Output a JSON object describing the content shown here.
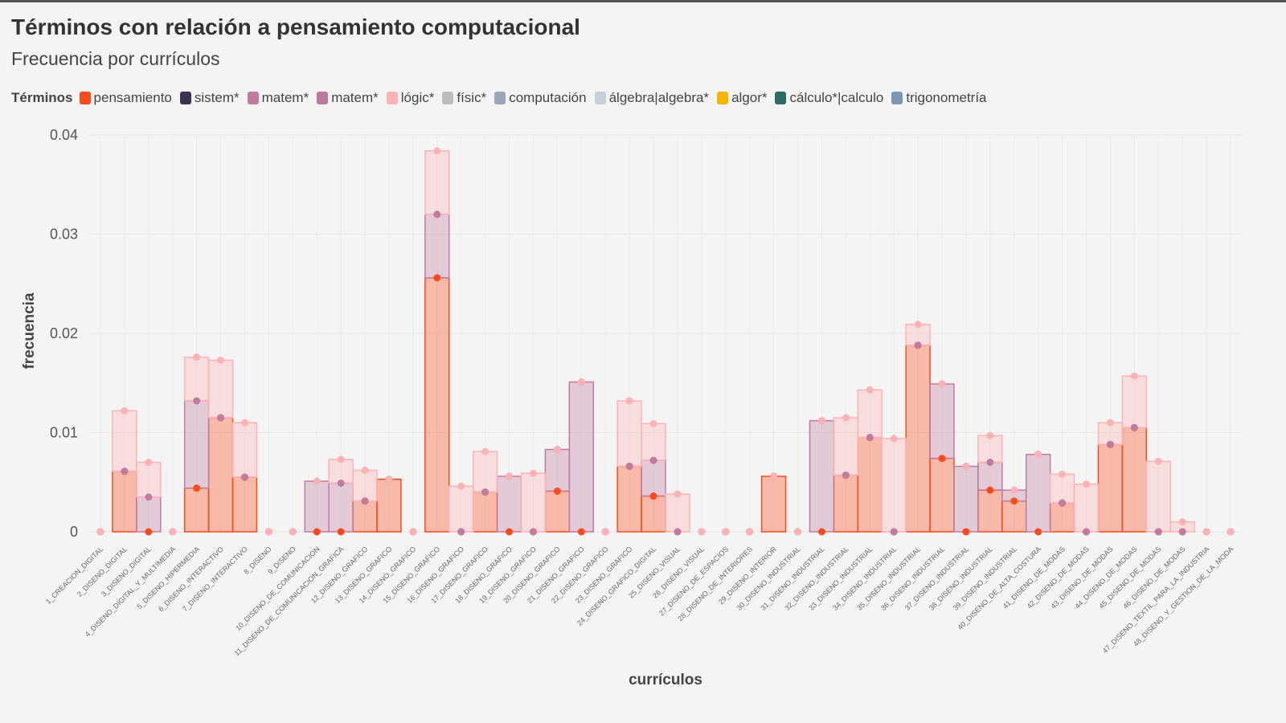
{
  "chart_data": {
    "type": "stacked_step_area",
    "title": "Términos con relación a pensamiento computacional",
    "subtitle": "Frecuencia por currículos",
    "legend_title": "Términos",
    "x_label": "currículos",
    "y_label": "frecuencia",
    "ylim": [
      0,
      0.04
    ],
    "yticks": [
      0,
      0.01,
      0.02,
      0.03,
      0.04
    ],
    "grid": true,
    "categories": [
      "1_CREACION_DIGITAL",
      "2_DISENO_DIGITAL",
      "3_DISENO_DIGITAL",
      "4_DISENO_DIGITAL_Y_MULTIMEDIA",
      "5_DISENO_HIPERMEDIA",
      "6_DISENO_INTERACTIVO",
      "7_DISENO_INTERACTIVO",
      "8_DISENO",
      "9_DISENO",
      "10_DISENO_DE_COMUNICACION",
      "11_DISENO_DE_COMUNICACION_GRAFICA",
      "12_DISENO_GRAFICO",
      "13_DISENO_GRAFICO",
      "14_DISENO_GRAFICO",
      "15_DISENO_GRAFICO",
      "16_DISENO_GRAFICO",
      "17_DISENO_GRAFICO",
      "18_DISENO_GRAFICO",
      "19_DISENO_GRAFICO",
      "20_DISENO_GRAFICO",
      "21_DISENO_GRAFICO",
      "22_DISENO_GRAFICO",
      "23_DISENO_GRAFICO",
      "24_DISENO_GRAFICO_DIGITAL",
      "25_DISENO_VISUAL",
      "26_DISENO_VISUAL",
      "27_DISENO_DE_ESPACIOS",
      "28_DISENO_DE_INTERIORES",
      "29_DISENO_INTERIOR",
      "30_DISENO_INDUSTRIAL",
      "31_DISENO_INDUSTRIAL",
      "32_DISENO_INDUSTRIAL",
      "33_DISENO_INDUSTRIAL",
      "34_DISENO_INDUSTRIAL",
      "35_DISENO_INDUSTRIAL",
      "36_DISENO_INDUSTRIAL",
      "37_DISENO_INDUSTRIAL",
      "38_DISENO_INDUSTRIAL",
      "39_DISENO_INDUSTRIAL",
      "40_DISENO_DE_ALTA_COSTURA",
      "41_DISENO_DE_MODAS",
      "42_DISENO_DE_MODAS",
      "43_DISENO_DE_MODAS",
      "44_DISENO_DE_MODAS",
      "45_DISENO_DE_MODAS",
      "46_DISENO_DE_MODAS",
      "47_DISENO_TEXTIL_PARA_LA_INDUSTRIA",
      "48_DISENO_Y_GESTION_DE_LA_MODA"
    ],
    "series": [
      {
        "name": "pensamiento",
        "color": "#fc4a1a",
        "values": [
          0,
          0.0061,
          0,
          0,
          0.0044,
          0.0115,
          0.0055,
          0,
          0,
          0,
          0,
          0.0031,
          0.0053,
          0,
          0.0256,
          0,
          0.004,
          0,
          0,
          0.0041,
          0,
          0,
          0.0066,
          0.0036,
          0,
          0,
          0,
          0,
          0.0056,
          0,
          0,
          0.0057,
          0.0095,
          0,
          0.0188,
          0.0074,
          0,
          0.0042,
          0.0031,
          0,
          0.0029,
          0,
          0.0088,
          0.0105,
          0,
          0,
          0,
          0
        ]
      },
      {
        "name": "sistem*",
        "color": "#3d3250"
      },
      {
        "name": "matem*",
        "color": "#c17b9f",
        "values": [
          0,
          0,
          0.0035,
          0,
          0.0088,
          0,
          0,
          0,
          0,
          0.0051,
          0.0049,
          0,
          0,
          0,
          0.0064,
          0,
          0,
          0.0056,
          0,
          0.0042,
          0.0151,
          0,
          0,
          0.0036,
          0,
          0,
          0,
          0,
          0,
          0,
          0.0112,
          0,
          0,
          0,
          0,
          0.0075,
          0.0066,
          0.0028,
          0.0011,
          0.0078,
          0,
          0,
          0,
          0,
          0,
          0,
          0,
          0
        ]
      },
      {
        "name": "matem*",
        "color": "#b97a9b"
      },
      {
        "name": "lógic*",
        "color": "#ffb2b4",
        "values": [
          0,
          0.0061,
          0.0035,
          0,
          0.0044,
          0.0058,
          0.0055,
          0,
          0,
          0,
          0.0024,
          0.0031,
          0,
          0,
          0.0064,
          0.0046,
          0.0041,
          0,
          0.0059,
          0,
          0,
          0,
          0.0066,
          0.0037,
          0.0038,
          0,
          0,
          0,
          0,
          0,
          0,
          0.0058,
          0.0048,
          0.0094,
          0.0021,
          0,
          0,
          0.0027,
          0,
          0,
          0.0029,
          0.0048,
          0.0022,
          0.0052,
          0.0071,
          0.001,
          0,
          0
        ]
      },
      {
        "name": "físic*",
        "color": "#bdbdbd"
      },
      {
        "name": "computación",
        "color": "#9da3b8"
      },
      {
        "name": "álgebra|algebra*",
        "color": "#c5d1d8"
      },
      {
        "name": "algor*",
        "color": "#f7b500"
      },
      {
        "name": "cálculo*|calculo",
        "color": "#2e6b66"
      },
      {
        "name": "trigonometría",
        "color": "#7a97b4"
      }
    ]
  }
}
